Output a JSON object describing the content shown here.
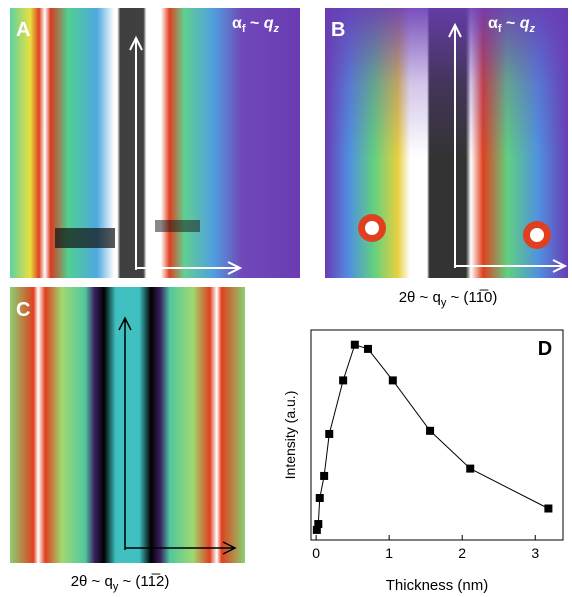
{
  "panels": {
    "a": {
      "label": "A",
      "axis_label": [
        "α",
        "f",
        " ~ ",
        "q",
        "z"
      ]
    },
    "b": {
      "label": "B",
      "axis_label": [
        "α",
        "f",
        " ~ ",
        "q",
        "z"
      ],
      "x_label": [
        "2θ ~ q",
        "y",
        " ~ (11̅0)"
      ]
    },
    "c": {
      "label": "C",
      "x_label": [
        "2θ ~ q",
        "y",
        " ~ (11̅2)"
      ]
    }
  },
  "chart_data": {
    "type": "line",
    "panel_label": "D",
    "x_label": "Thickness (nm)",
    "y_label": "Intensity (a.u.)",
    "x": [
      0.01,
      0.03,
      0.05,
      0.11,
      0.18,
      0.37,
      0.53,
      0.71,
      1.05,
      1.56,
      2.11,
      3.18
    ],
    "values": [
      4.8,
      7.6,
      20,
      30.5,
      50.5,
      76,
      93,
      91,
      76,
      52,
      34,
      15
    ],
    "color": "#000000",
    "xlim": [
      -0.07,
      3.38
    ],
    "xticks": [
      0,
      1,
      2,
      3
    ],
    "ylim": [
      0,
      100
    ]
  }
}
